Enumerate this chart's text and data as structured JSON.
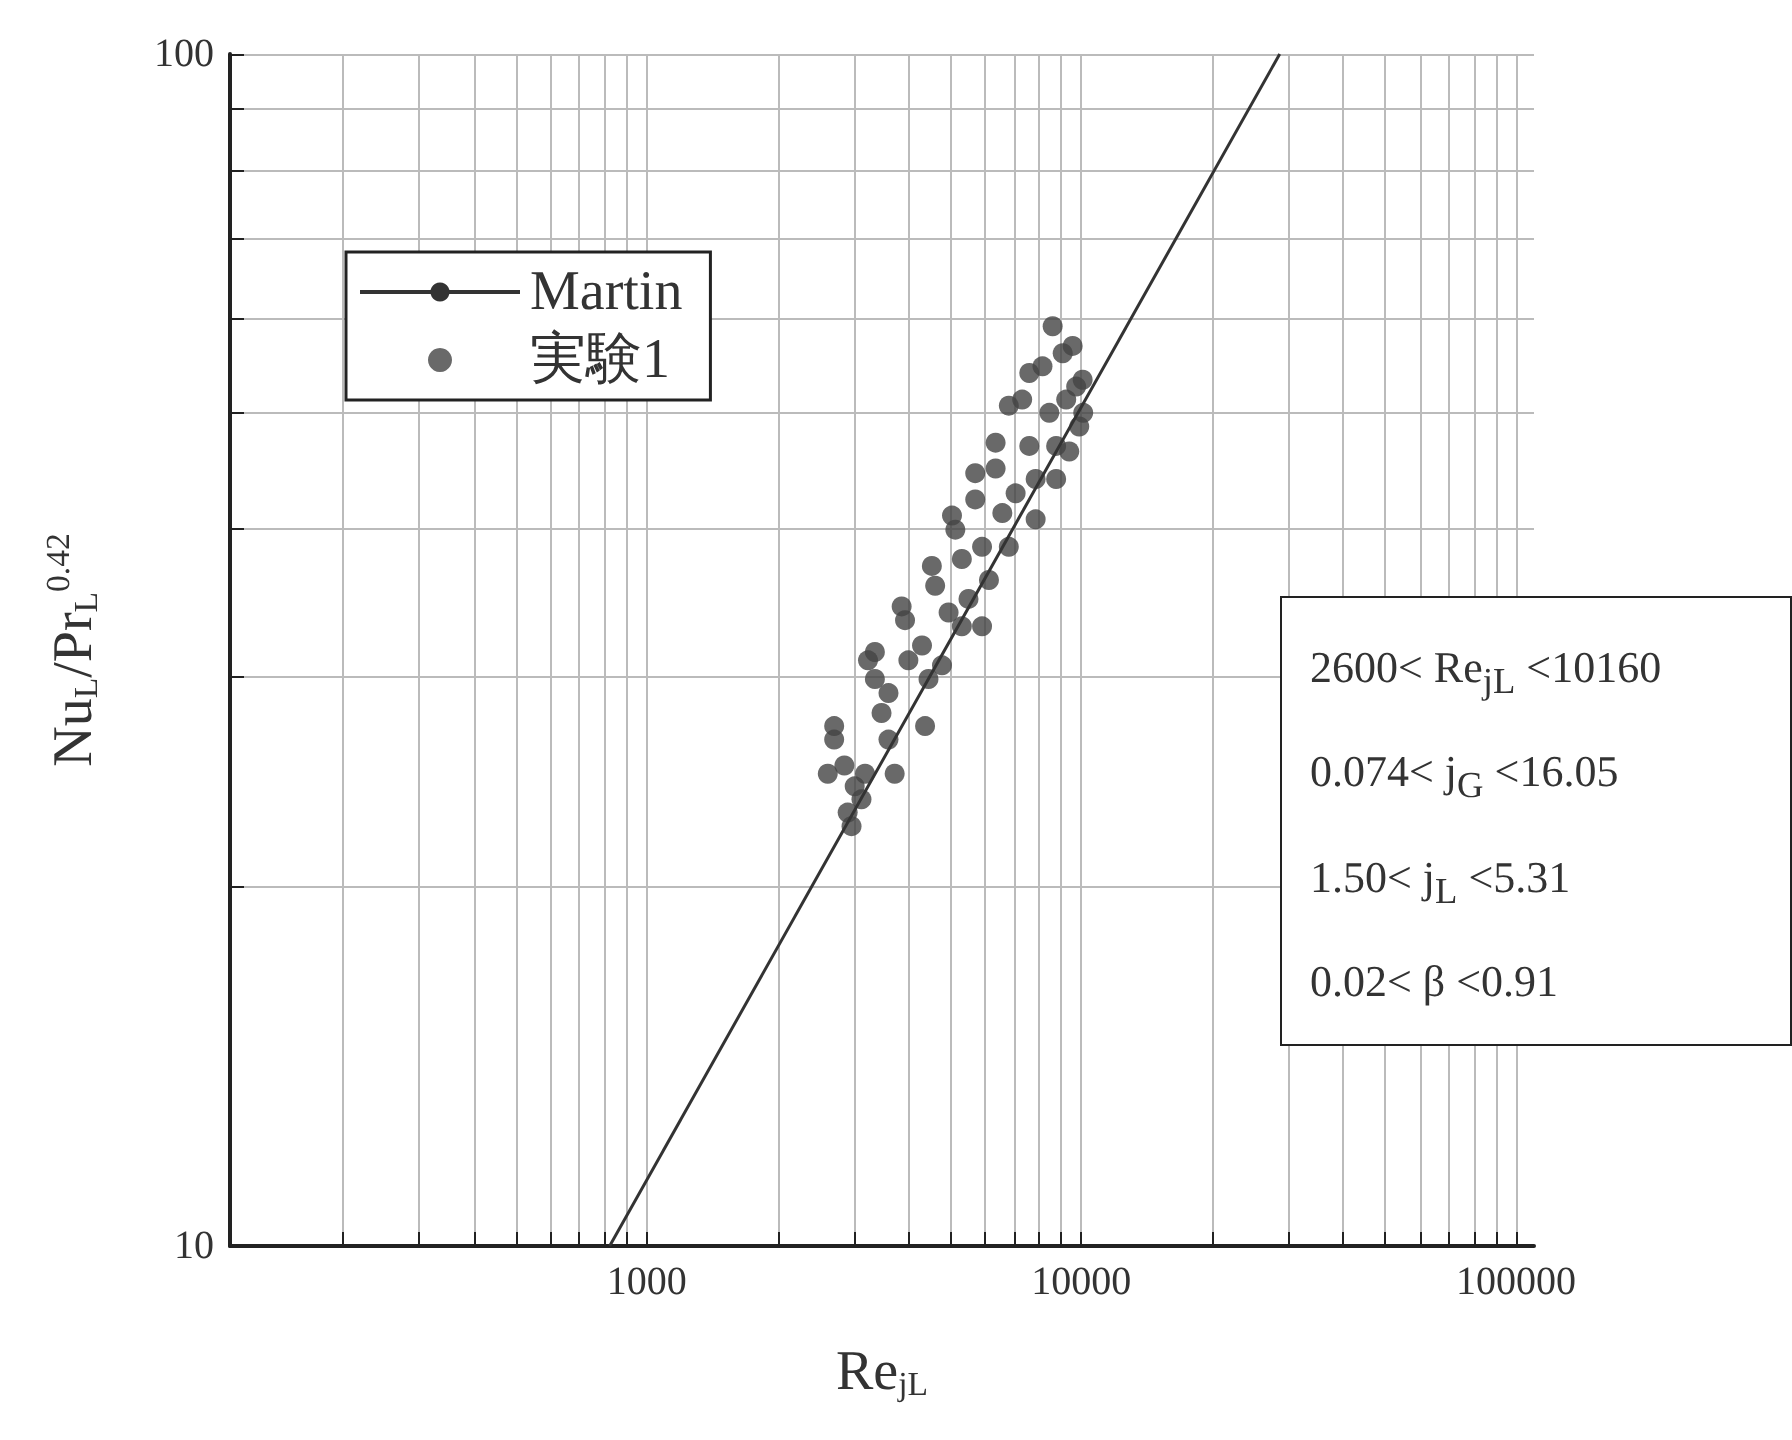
{
  "chart_data": {
    "type": "scatter",
    "xlabel": "Re$_{jL}$",
    "ylabel": "Nu$_{L}$/Pr$_{L}$$^{0.42}$",
    "log": "xy",
    "grid": true,
    "legend": "top left",
    "xlim": [
      110,
      110000
    ],
    "xticks": [
      {
        "value": 200,
        "label": null
      },
      {
        "value": 300,
        "label": null
      },
      {
        "value": 400,
        "label": null
      },
      {
        "value": 500,
        "label": null
      },
      {
        "value": 600,
        "label": null
      },
      {
        "value": 700,
        "label": null
      },
      {
        "value": 800,
        "label": null
      },
      {
        "value": 900,
        "label": null
      },
      1000,
      {
        "value": 2000,
        "label": null
      },
      {
        "value": 3000,
        "label": null
      },
      {
        "value": 4000,
        "label": null
      },
      {
        "value": 5000,
        "label": null
      },
      {
        "value": 6000,
        "label": null
      },
      {
        "value": 7000,
        "label": null
      },
      {
        "value": 8000,
        "label": null
      },
      {
        "value": 9000,
        "label": null
      },
      10000,
      {
        "value": 20000,
        "label": null
      },
      {
        "value": 30000,
        "label": null
      },
      {
        "value": 40000,
        "label": null
      },
      {
        "value": 50000,
        "label": null
      },
      {
        "value": 60000,
        "label": null
      },
      {
        "value": 70000,
        "label": null
      },
      {
        "value": 80000,
        "label": null
      },
      {
        "value": 90000,
        "label": null
      },
      100000
    ],
    "ylim": [
      10,
      100
    ],
    "yticks": [
      10,
      {
        "value": 20,
        "label": null
      },
      {
        "value": 30,
        "label": null
      },
      {
        "value": 40,
        "label": null
      },
      {
        "value": 50,
        "label": null
      },
      {
        "value": 60,
        "label": null
      },
      {
        "value": 70,
        "label": null
      },
      {
        "value": 80,
        "label": null
      },
      {
        "value": 90,
        "label": null
      },
      100
    ],
    "series": [
      {
        "name": "Martin",
        "type": "line",
        "marker": "none",
        "color": "#333333",
        "x": [
          822,
          28600
        ],
        "values": [
          10,
          100
        ]
      },
      {
        "name": "実験1",
        "marker": "circle",
        "color": "#444444",
        "x": [
          2610,
          2700,
          2700,
          2850,
          3010,
          3120,
          2900,
          2960,
          3180,
          3350,
          3350,
          3470,
          3600,
          3720,
          3860,
          3930,
          4000,
          4300,
          4450,
          4370,
          4780,
          4530,
          4610,
          4950,
          5040,
          5130,
          5310,
          5500,
          5700,
          5700,
          5910,
          6130,
          6350,
          6350,
          6580,
          6810,
          7060,
          7310,
          7590,
          7850,
          7850,
          8140,
          8440,
          8590,
          8750,
          9060,
          9230,
          9550,
          9730,
          9890,
          10100,
          10070,
          6810,
          7590,
          5910,
          5310,
          3600,
          3230,
          8750,
          9380
        ],
        "values": [
          24.9,
          27.3,
          26.6,
          25.3,
          24.3,
          23.7,
          23.1,
          22.5,
          24.9,
          31.5,
          29.9,
          28.0,
          26.6,
          24.9,
          34.4,
          33.5,
          31.0,
          31.9,
          29.9,
          27.3,
          30.7,
          37.2,
          35.8,
          34.0,
          41.0,
          39.9,
          37.7,
          34.9,
          44.5,
          42.3,
          38.6,
          36.2,
          47.2,
          44.9,
          41.2,
          38.6,
          42.8,
          51.3,
          46.9,
          44.0,
          40.7,
          54.7,
          50.0,
          59.1,
          46.9,
          56.1,
          51.3,
          56.9,
          52.6,
          48.7,
          50.0,
          53.3,
          50.7,
          54.0,
          33.1,
          33.1,
          29.1,
          31.0,
          44.0,
          46.4
        ]
      }
    ],
    "annotations": [
      "2600< Re$_{jL}$ <10160",
      "0.074< j$_{G}$ <16.05",
      "1.50< j$_{L}$ <5.31",
      "0.02< β <0.91"
    ]
  }
}
